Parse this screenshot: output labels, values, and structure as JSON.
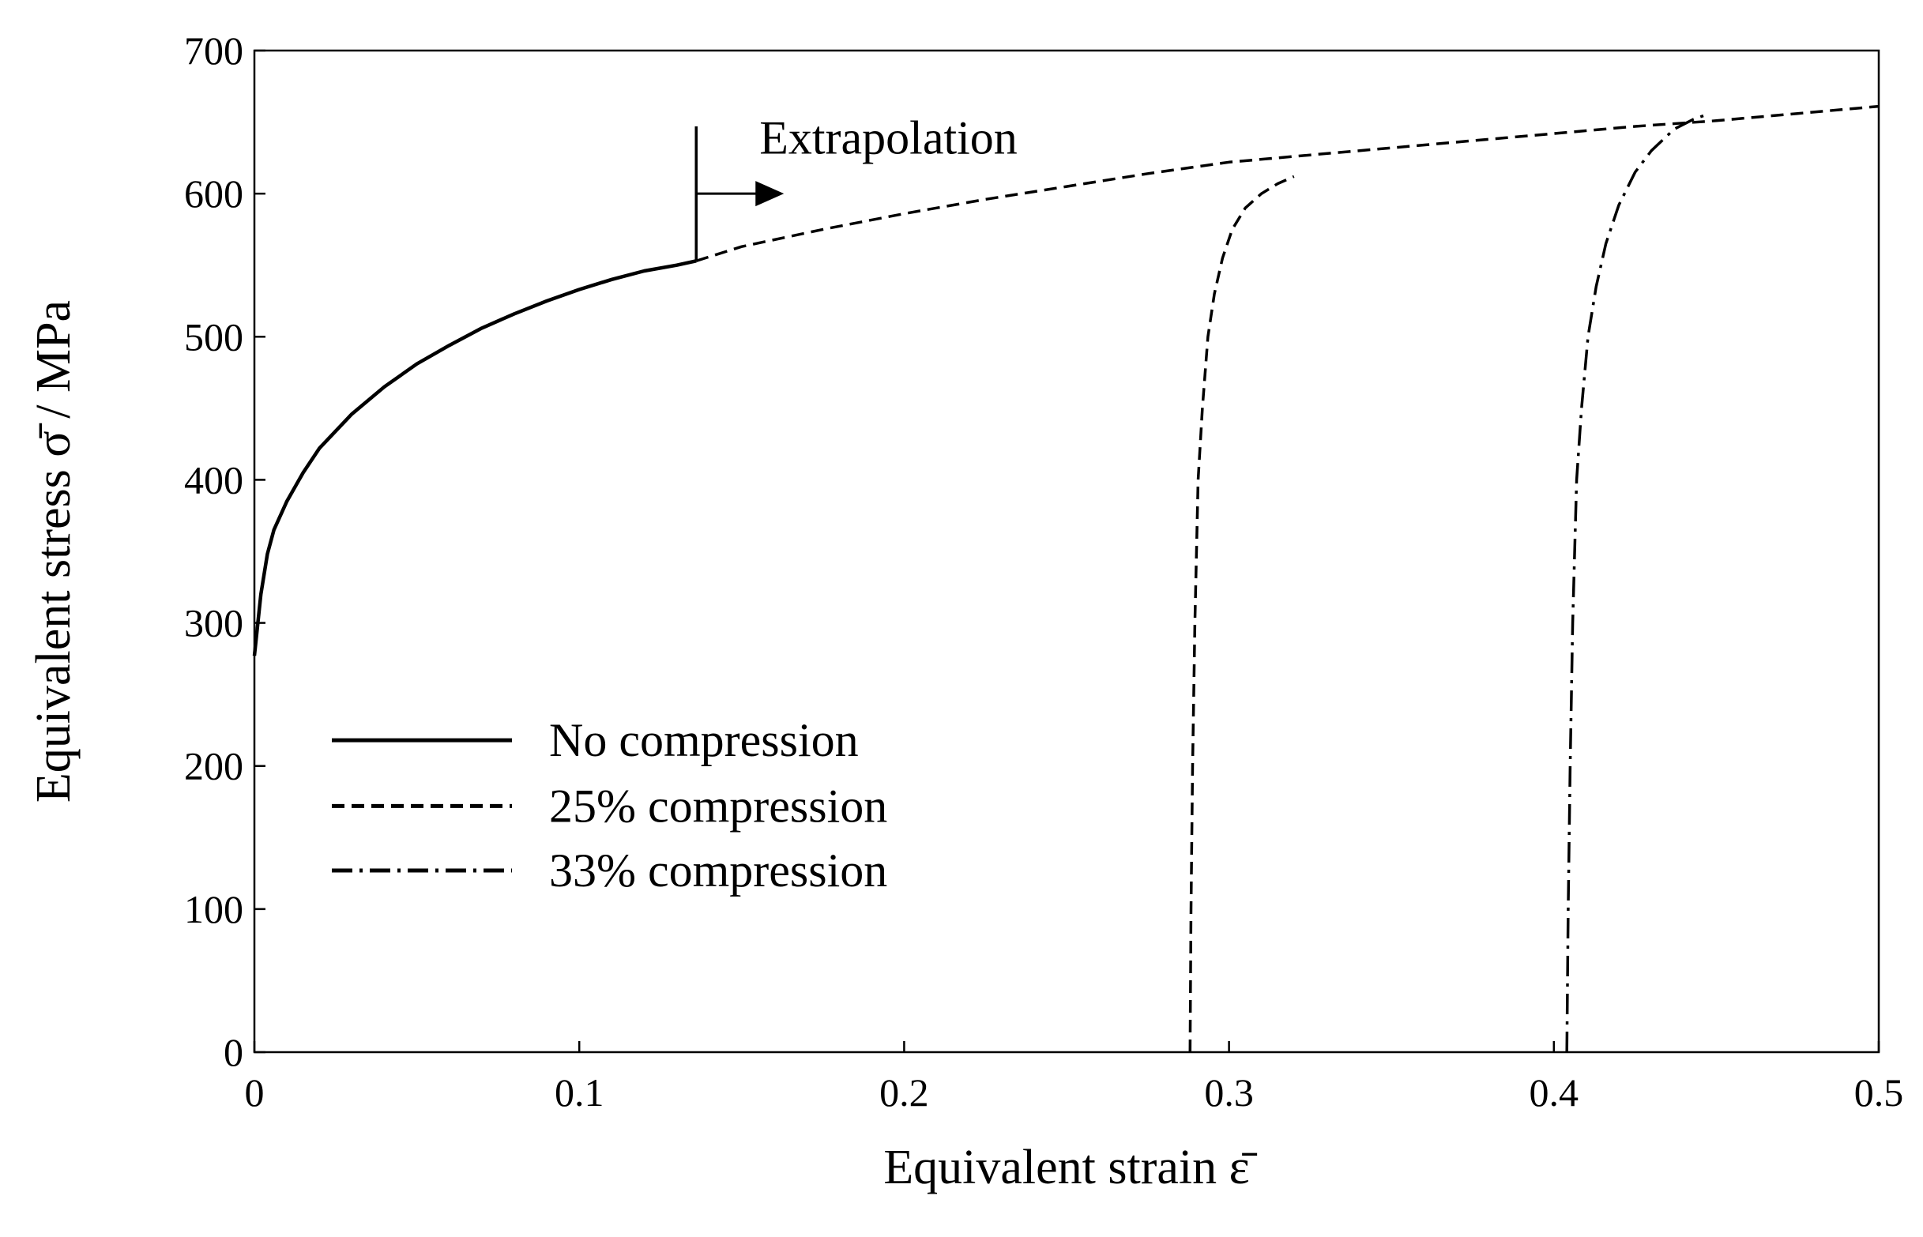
{
  "chart_data": {
    "type": "line",
    "title": "",
    "xlabel": "Equivalent strain ε̄",
    "ylabel": "Equivalent stress σ̄ / MPa",
    "xlim": [
      0,
      0.5
    ],
    "ylim": [
      0,
      700
    ],
    "xticks": [
      0,
      0.1,
      0.2,
      0.3,
      0.4,
      0.5
    ],
    "xtick_labels": [
      "0",
      "0.1",
      "0.2",
      "0.3",
      "0.4",
      "0.5"
    ],
    "yticks": [
      0,
      100,
      200,
      300,
      400,
      500,
      600,
      700
    ],
    "ytick_labels": [
      "0",
      "100",
      "200",
      "300",
      "400",
      "500",
      "600",
      "700"
    ],
    "grid": false,
    "legend_position": "lower-left",
    "series": [
      {
        "name": "No compression",
        "style": "solid",
        "x": [
          0.0,
          0.002,
          0.004,
          0.006,
          0.01,
          0.015,
          0.02,
          0.03,
          0.04,
          0.05,
          0.06,
          0.07,
          0.08,
          0.09,
          0.1,
          0.11,
          0.12,
          0.13,
          0.136
        ],
        "y": [
          277,
          320,
          348,
          365,
          385,
          405,
          422,
          446,
          465,
          481,
          494,
          506,
          516,
          525,
          533,
          540,
          546,
          550,
          553
        ]
      },
      {
        "name": "Extrapolation",
        "style": "dashed",
        "x": [
          0.136,
          0.15,
          0.175,
          0.2,
          0.225,
          0.25,
          0.275,
          0.3,
          0.325,
          0.35,
          0.375,
          0.4,
          0.425,
          0.45,
          0.475,
          0.5
        ],
        "y": [
          553,
          563,
          575,
          586,
          596,
          605,
          614,
          622,
          627,
          632,
          637,
          642,
          647,
          651,
          656,
          661
        ]
      },
      {
        "name": "25% compression",
        "style": "dashed",
        "x": [
          0.288,
          0.2883,
          0.2888,
          0.2895,
          0.2905,
          0.2918,
          0.2935,
          0.2955,
          0.298,
          0.301,
          0.305,
          0.31,
          0.315,
          0.32
        ],
        "y": [
          0,
          100,
          200,
          300,
          400,
          450,
          500,
          530,
          555,
          575,
          590,
          600,
          607,
          612
        ]
      },
      {
        "name": "33% compression",
        "style": "dash-dot",
        "x": [
          0.404,
          0.4044,
          0.405,
          0.4058,
          0.407,
          0.4085,
          0.4105,
          0.413,
          0.416,
          0.42,
          0.425,
          0.43,
          0.437,
          0.443,
          0.448
        ],
        "y": [
          0,
          100,
          200,
          300,
          400,
          450,
          500,
          535,
          565,
          592,
          615,
          630,
          645,
          652,
          656
        ]
      }
    ],
    "legend": [
      {
        "label": "No compression",
        "style": "solid"
      },
      {
        "label": "25% compression",
        "style": "dashed"
      },
      {
        "label": "33% compression",
        "style": "dash-dot"
      }
    ],
    "annotations": [
      {
        "text": "Extrapolation",
        "x": 0.136,
        "y": 600,
        "type": "marker-with-arrow"
      }
    ]
  }
}
